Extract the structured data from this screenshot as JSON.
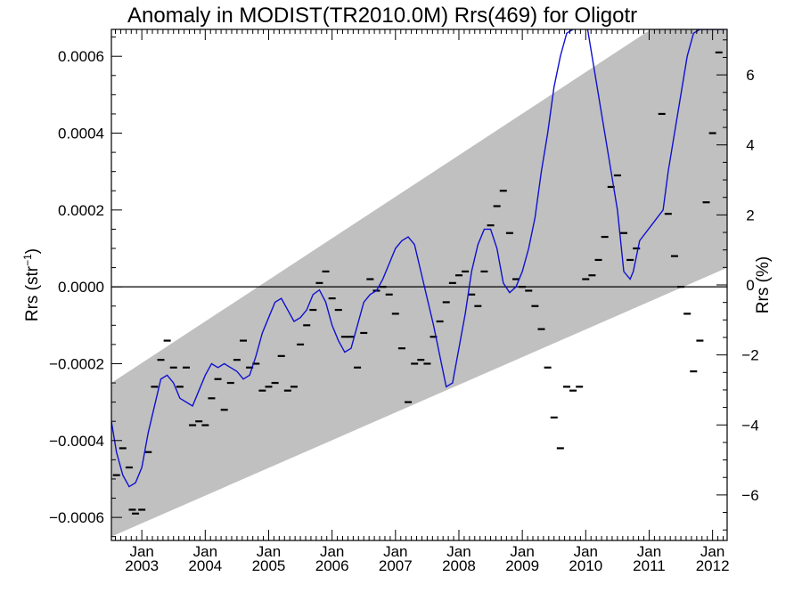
{
  "chart_data": {
    "type": "line",
    "title": "Anomaly in MODIST(TR2010.0M) Rrs(469) for Oligotr",
    "ylabel": "Rrs (str⁻¹)",
    "y2label": "Rrs (%)",
    "xlabel": "",
    "xlim": [
      2002.52,
      2012.23
    ],
    "ylim": [
      -0.00066,
      0.00067
    ],
    "y2lim": [
      -7.3,
      7.3
    ],
    "grid": false,
    "x_ticks": [
      {
        "x": 2003.0,
        "month": "Jan",
        "year": "2003"
      },
      {
        "x": 2004.0,
        "month": "Jan",
        "year": "2004"
      },
      {
        "x": 2005.0,
        "month": "Jan",
        "year": "2005"
      },
      {
        "x": 2006.0,
        "month": "Jan",
        "year": "2006"
      },
      {
        "x": 2007.0,
        "month": "Jan",
        "year": "2007"
      },
      {
        "x": 2008.0,
        "month": "Jan",
        "year": "2008"
      },
      {
        "x": 2009.0,
        "month": "Jan",
        "year": "2009"
      },
      {
        "x": 2010.0,
        "month": "Jan",
        "year": "2010"
      },
      {
        "x": 2011.0,
        "month": "Jan",
        "year": "2011"
      },
      {
        "x": 2012.0,
        "month": "Jan",
        "year": "2012"
      }
    ],
    "y_ticks": [
      {
        "v": 0.0006,
        "label": "0.0006"
      },
      {
        "v": 0.0004,
        "label": "0.0004"
      },
      {
        "v": 0.0002,
        "label": "0.0002"
      },
      {
        "v": 0.0,
        "label": "0.0000"
      },
      {
        "v": -0.0002,
        "label": "−0.0002"
      },
      {
        "v": -0.0004,
        "label": "−0.0004"
      },
      {
        "v": -0.0006,
        "label": "−0.0006"
      }
    ],
    "y2_ticks": [
      {
        "v": 6,
        "label": "6"
      },
      {
        "v": 4,
        "label": "4"
      },
      {
        "v": 2,
        "label": "2"
      },
      {
        "v": 0,
        "label": "0"
      },
      {
        "v": -2,
        "label": "−2"
      },
      {
        "v": -4,
        "label": "−4"
      },
      {
        "v": -6,
        "label": "−6"
      }
    ],
    "band": {
      "x": [
        2002.52,
        2012.23
      ],
      "lower": [
        -0.00065,
        5e-05
      ],
      "upper": [
        -0.00025,
        0.0008
      ],
      "color": "#c0c0c0"
    },
    "zero_line": 0.0,
    "series": [
      {
        "kind": "line",
        "color": "#1010d0",
        "x": [
          2002.52,
          2002.6,
          2002.7,
          2002.8,
          2002.9,
          2003.0,
          2003.1,
          2003.2,
          2003.3,
          2003.4,
          2003.5,
          2003.6,
          2003.7,
          2003.8,
          2003.9,
          2004.0,
          2004.1,
          2004.2,
          2004.3,
          2004.4,
          2004.5,
          2004.6,
          2004.7,
          2004.8,
          2004.9,
          2005.0,
          2005.1,
          2005.2,
          2005.3,
          2005.4,
          2005.5,
          2005.6,
          2005.7,
          2005.8,
          2005.9,
          2006.0,
          2006.1,
          2006.2,
          2006.3,
          2006.4,
          2006.5,
          2006.6,
          2006.7,
          2006.8,
          2006.9,
          2007.0,
          2007.1,
          2007.2,
          2007.3,
          2007.4,
          2007.5,
          2007.6,
          2007.7,
          2007.8,
          2007.9,
          2008.0,
          2008.1,
          2008.2,
          2008.3,
          2008.4,
          2008.5,
          2008.6,
          2008.7,
          2008.8,
          2008.9,
          2009.0,
          2009.1,
          2009.2,
          2009.3,
          2009.4,
          2009.5,
          2009.6,
          2009.7,
          2009.8,
          2009.9,
          2010.0,
          2010.1,
          2010.2,
          2010.3,
          2010.4,
          2010.5,
          2010.6,
          2010.7,
          2010.75,
          2010.8,
          2010.85,
          2011.22,
          2011.3,
          2011.4,
          2011.5,
          2011.6,
          2011.7,
          2011.8,
          2011.9,
          2012.0,
          2012.1,
          2012.18
        ],
        "y": [
          -0.00035,
          -0.00043,
          -0.00049,
          -0.00052,
          -0.00051,
          -0.00047,
          -0.00038,
          -0.00031,
          -0.00024,
          -0.00023,
          -0.00025,
          -0.00029,
          -0.0003,
          -0.00031,
          -0.00027,
          -0.00023,
          -0.0002,
          -0.00021,
          -0.0002,
          -0.00021,
          -0.00022,
          -0.00024,
          -0.00023,
          -0.00018,
          -0.00012,
          -8e-05,
          -4e-05,
          -3e-05,
          -6e-05,
          -9e-05,
          -8e-05,
          -6e-05,
          -2e-05,
          -8e-06,
          -4e-05,
          -0.0001,
          -0.00014,
          -0.00017,
          -0.00016,
          -0.0001,
          -4e-05,
          -2e-05,
          -1e-05,
          2e-05,
          6e-05,
          0.0001,
          0.00012,
          0.00013,
          0.00011,
          4e-05,
          -3e-05,
          -0.0001,
          -0.00018,
          -0.00026,
          -0.00025,
          -0.00016,
          -7e-05,
          4e-05,
          0.00011,
          0.00015,
          0.00015,
          0.0001,
          1e-05,
          -1.5e-05,
          0.0,
          4e-05,
          0.0001,
          0.00018,
          0.0003,
          0.0004,
          0.00052,
          0.0006,
          0.00066,
          0.00067,
          0.00069,
          0.0007,
          0.0006,
          0.0005,
          0.0004,
          0.0003,
          0.0002,
          4e-05,
          2e-05,
          4e-05,
          8e-05,
          0.00012,
          0.0002,
          0.0003,
          0.0004,
          0.0005,
          0.0006,
          0.00066,
          0.00067,
          0.00067,
          0.00067,
          0.00067,
          0.00067
        ]
      },
      {
        "kind": "markers",
        "color": "#000000",
        "x": [
          2002.6,
          2002.7,
          2002.8,
          2002.85,
          2002.9,
          2003.0,
          2003.1,
          2003.2,
          2003.3,
          2003.4,
          2003.5,
          2003.6,
          2003.7,
          2003.8,
          2003.9,
          2004.0,
          2004.1,
          2004.2,
          2004.3,
          2004.4,
          2004.5,
          2004.6,
          2004.7,
          2004.8,
          2004.9,
          2005.0,
          2005.1,
          2005.2,
          2005.3,
          2005.4,
          2005.5,
          2005.6,
          2005.7,
          2005.8,
          2005.9,
          2006.0,
          2006.1,
          2006.2,
          2006.3,
          2006.4,
          2006.5,
          2006.6,
          2006.7,
          2006.8,
          2006.9,
          2007.0,
          2007.1,
          2007.2,
          2007.3,
          2007.4,
          2007.5,
          2007.6,
          2007.7,
          2007.8,
          2007.9,
          2008.0,
          2008.1,
          2008.2,
          2008.3,
          2008.4,
          2008.5,
          2008.6,
          2008.7,
          2008.8,
          2008.9,
          2009.0,
          2009.1,
          2009.2,
          2009.3,
          2009.4,
          2009.5,
          2009.6,
          2009.7,
          2009.8,
          2009.9,
          2010.0,
          2010.1,
          2010.2,
          2010.3,
          2010.4,
          2010.5,
          2010.6,
          2010.7,
          2010.8,
          2011.2,
          2011.3,
          2011.4,
          2011.5,
          2011.6,
          2011.7,
          2011.8,
          2011.9,
          2012.0,
          2012.1
        ],
        "y": [
          -0.00049,
          -0.00042,
          -0.00047,
          -0.00058,
          -0.00059,
          -0.00058,
          -0.00043,
          -0.00026,
          -0.00019,
          -0.00014,
          -0.00021,
          -0.00026,
          -0.00021,
          -0.00036,
          -0.00035,
          -0.00036,
          -0.00029,
          -0.00024,
          -0.00032,
          -0.00025,
          -0.00019,
          -0.00014,
          -0.00021,
          -0.0002,
          -0.00027,
          -0.00026,
          -0.00025,
          -0.00018,
          -0.00027,
          -0.00026,
          -0.00015,
          -0.0001,
          -6e-05,
          1e-05,
          4e-05,
          -3e-05,
          -6e-05,
          -0.00013,
          -0.00013,
          -0.00021,
          -0.00012,
          2e-05,
          -1e-05,
          0.0,
          -2e-05,
          -7e-05,
          -0.00016,
          -0.0003,
          -0.0002,
          -0.00019,
          -0.0002,
          -0.00013,
          -9e-05,
          -4e-05,
          1e-05,
          3e-05,
          4e-05,
          -2e-05,
          -5e-05,
          4e-05,
          0.00016,
          0.00021,
          0.00025,
          0.00014,
          2e-05,
          0.0,
          -1e-05,
          -5e-05,
          -0.00011,
          -0.00021,
          -0.00034,
          -0.00042,
          -0.00026,
          -0.00027,
          -0.00026,
          2e-05,
          3e-05,
          7e-05,
          0.00013,
          0.00026,
          0.00029,
          0.00014,
          7e-05,
          0.0001,
          0.00045,
          0.00019,
          8e-05,
          0.0,
          -7e-05,
          -0.00022,
          -0.00014,
          0.00022,
          0.0004,
          0.00061
        ]
      }
    ]
  }
}
